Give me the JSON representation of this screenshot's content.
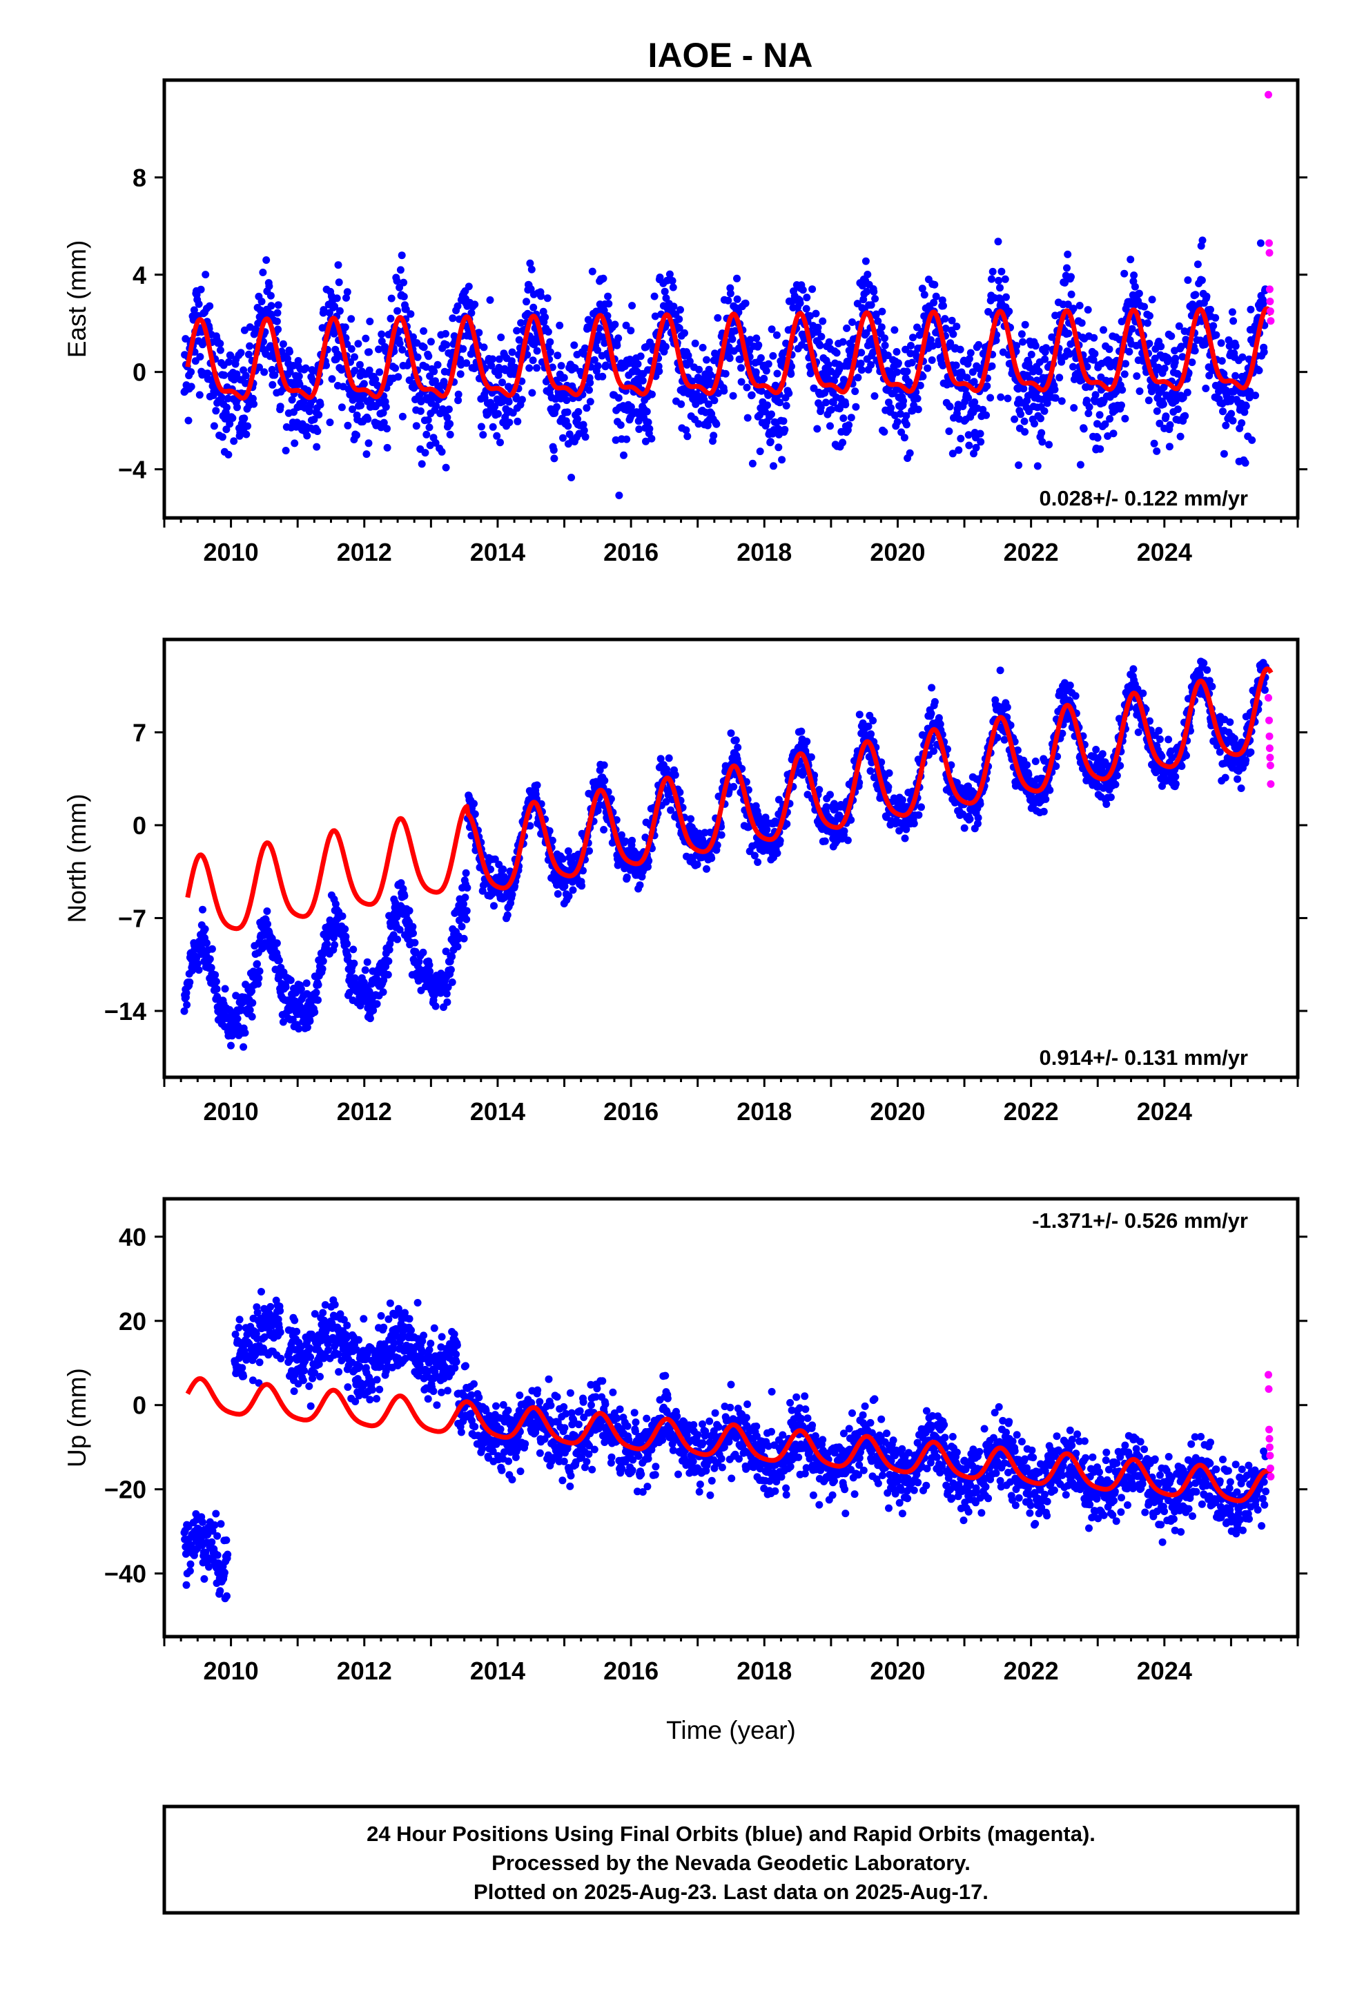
{
  "title": "IAOE - NA",
  "footer": {
    "line1": "24 Hour Positions Using Final Orbits (blue) and Rapid Orbits (magenta).",
    "line2": "Processed by the Nevada Geodetic Laboratory.",
    "line3": "Plotted on 2025-Aug-23. Last data on 2025-Aug-17."
  },
  "colors": {
    "final": "#0000ff",
    "rapid": "#ff00ff",
    "model": "#ff0000",
    "frame": "#000000"
  },
  "chart_data": [
    {
      "type": "scatter",
      "ylabel": "East (mm)",
      "xlabel": "",
      "xlim": [
        2009.0,
        2026.0
      ],
      "ylim": [
        -6.0,
        12.0
      ],
      "x_ticks": [
        2010,
        2012,
        2014,
        2016,
        2018,
        2020,
        2022,
        2024
      ],
      "y_ticks": [
        -4,
        0,
        4,
        8
      ],
      "rate_label": "0.028+/- 0.122 mm/yr",
      "rate_position": "bottom-right",
      "series": [
        {
          "role": "final_orbits",
          "start": 2009.3,
          "end": 2025.52,
          "rate": 0.028,
          "offset": 0.0,
          "amplitude": 1.6,
          "annual_phase": 0.55,
          "semiannual": 0.6,
          "noise": 1.15,
          "gaps": []
        },
        {
          "role": "rapid_orbits",
          "x": [
            2025.56,
            2025.57,
            2025.575,
            2025.58,
            2025.585,
            2025.59,
            2025.595
          ],
          "y": [
            11.4,
            5.3,
            4.9,
            3.4,
            2.9,
            2.5,
            2.1
          ]
        },
        {
          "role": "model",
          "start": 2009.35,
          "end": 2025.6,
          "rate": 0.028,
          "offset": 0.1,
          "amplitude": 1.5,
          "annual_phase": 0.55,
          "semiannual": 0.75,
          "steps": []
        }
      ]
    },
    {
      "type": "scatter",
      "ylabel": "North (mm)",
      "xlabel": "",
      "xlim": [
        2009.0,
        2026.0
      ],
      "ylim": [
        -19.0,
        14.0
      ],
      "x_ticks": [
        2010,
        2012,
        2014,
        2016,
        2018,
        2020,
        2022,
        2024
      ],
      "y_ticks": [
        -14,
        -7,
        0,
        7
      ],
      "rate_label": "0.914+/- 0.131 mm/yr",
      "rate_position": "bottom-right",
      "series": [
        {
          "role": "final_orbits",
          "start": 2009.3,
          "end": 2025.52,
          "rate": 0.914,
          "offset": -6.6,
          "amplitude": 3.1,
          "annual_phase": 0.55,
          "semiannual": 0.5,
          "noise": 0.9,
          "steps": [
            {
              "at": 2013.55,
              "before": -6.4
            }
          ],
          "gaps": []
        },
        {
          "role": "rapid_orbits",
          "x": [
            2025.56,
            2025.57,
            2025.575,
            2025.58,
            2025.585,
            2025.59,
            2025.595
          ],
          "y": [
            9.6,
            7.9,
            6.7,
            5.8,
            5.1,
            4.5,
            3.1
          ]
        },
        {
          "role": "model",
          "start": 2009.35,
          "end": 2025.6,
          "rate": 0.914,
          "offset": -6.6,
          "amplitude": 3.0,
          "annual_phase": 0.55,
          "semiannual": 0.4,
          "steps": [
            {
              "at": 2013.55,
              "before": 0.6
            }
          ]
        }
      ]
    },
    {
      "type": "scatter",
      "ylabel": "Up (mm)",
      "xlabel": "Time (year)",
      "xlim": [
        2009.0,
        2026.0
      ],
      "ylim": [
        -55.0,
        49.0
      ],
      "x_ticks": [
        2010,
        2012,
        2014,
        2016,
        2018,
        2020,
        2022,
        2024
      ],
      "y_ticks": [
        -40,
        -20,
        0,
        20,
        40
      ],
      "rate_label": "-1.371+/- 0.526 mm/yr",
      "rate_position": "top-right",
      "series": [
        {
          "role": "final_orbits",
          "start": 2009.3,
          "end": 2025.52,
          "rate": -1.371,
          "offset": 1.5,
          "amplitude": 4.0,
          "annual_phase": 0.55,
          "semiannual": 0.3,
          "noise": 4.0,
          "steps": [
            {
              "at": 2010.05,
              "before": -52.0
            },
            {
              "at": 2013.4,
              "before": 15.0
            }
          ],
          "gaps": [
            [
              2009.95,
              2010.05
            ],
            [
              2010.75,
              2010.85
            ]
          ]
        },
        {
          "role": "rapid_orbits",
          "x": [
            2025.56,
            2025.565,
            2025.57,
            2025.575,
            2025.58,
            2025.585,
            2025.59,
            2025.595
          ],
          "y": [
            7.2,
            3.8,
            -5.8,
            -8.0,
            -10.0,
            -12.0,
            -15.0,
            -17.0
          ]
        },
        {
          "role": "model",
          "start": 2009.35,
          "end": 2025.6,
          "rate": -1.371,
          "offset": 2.0,
          "amplitude": 3.8,
          "annual_phase": 0.55,
          "semiannual": 0.4,
          "steps": []
        }
      ]
    }
  ]
}
